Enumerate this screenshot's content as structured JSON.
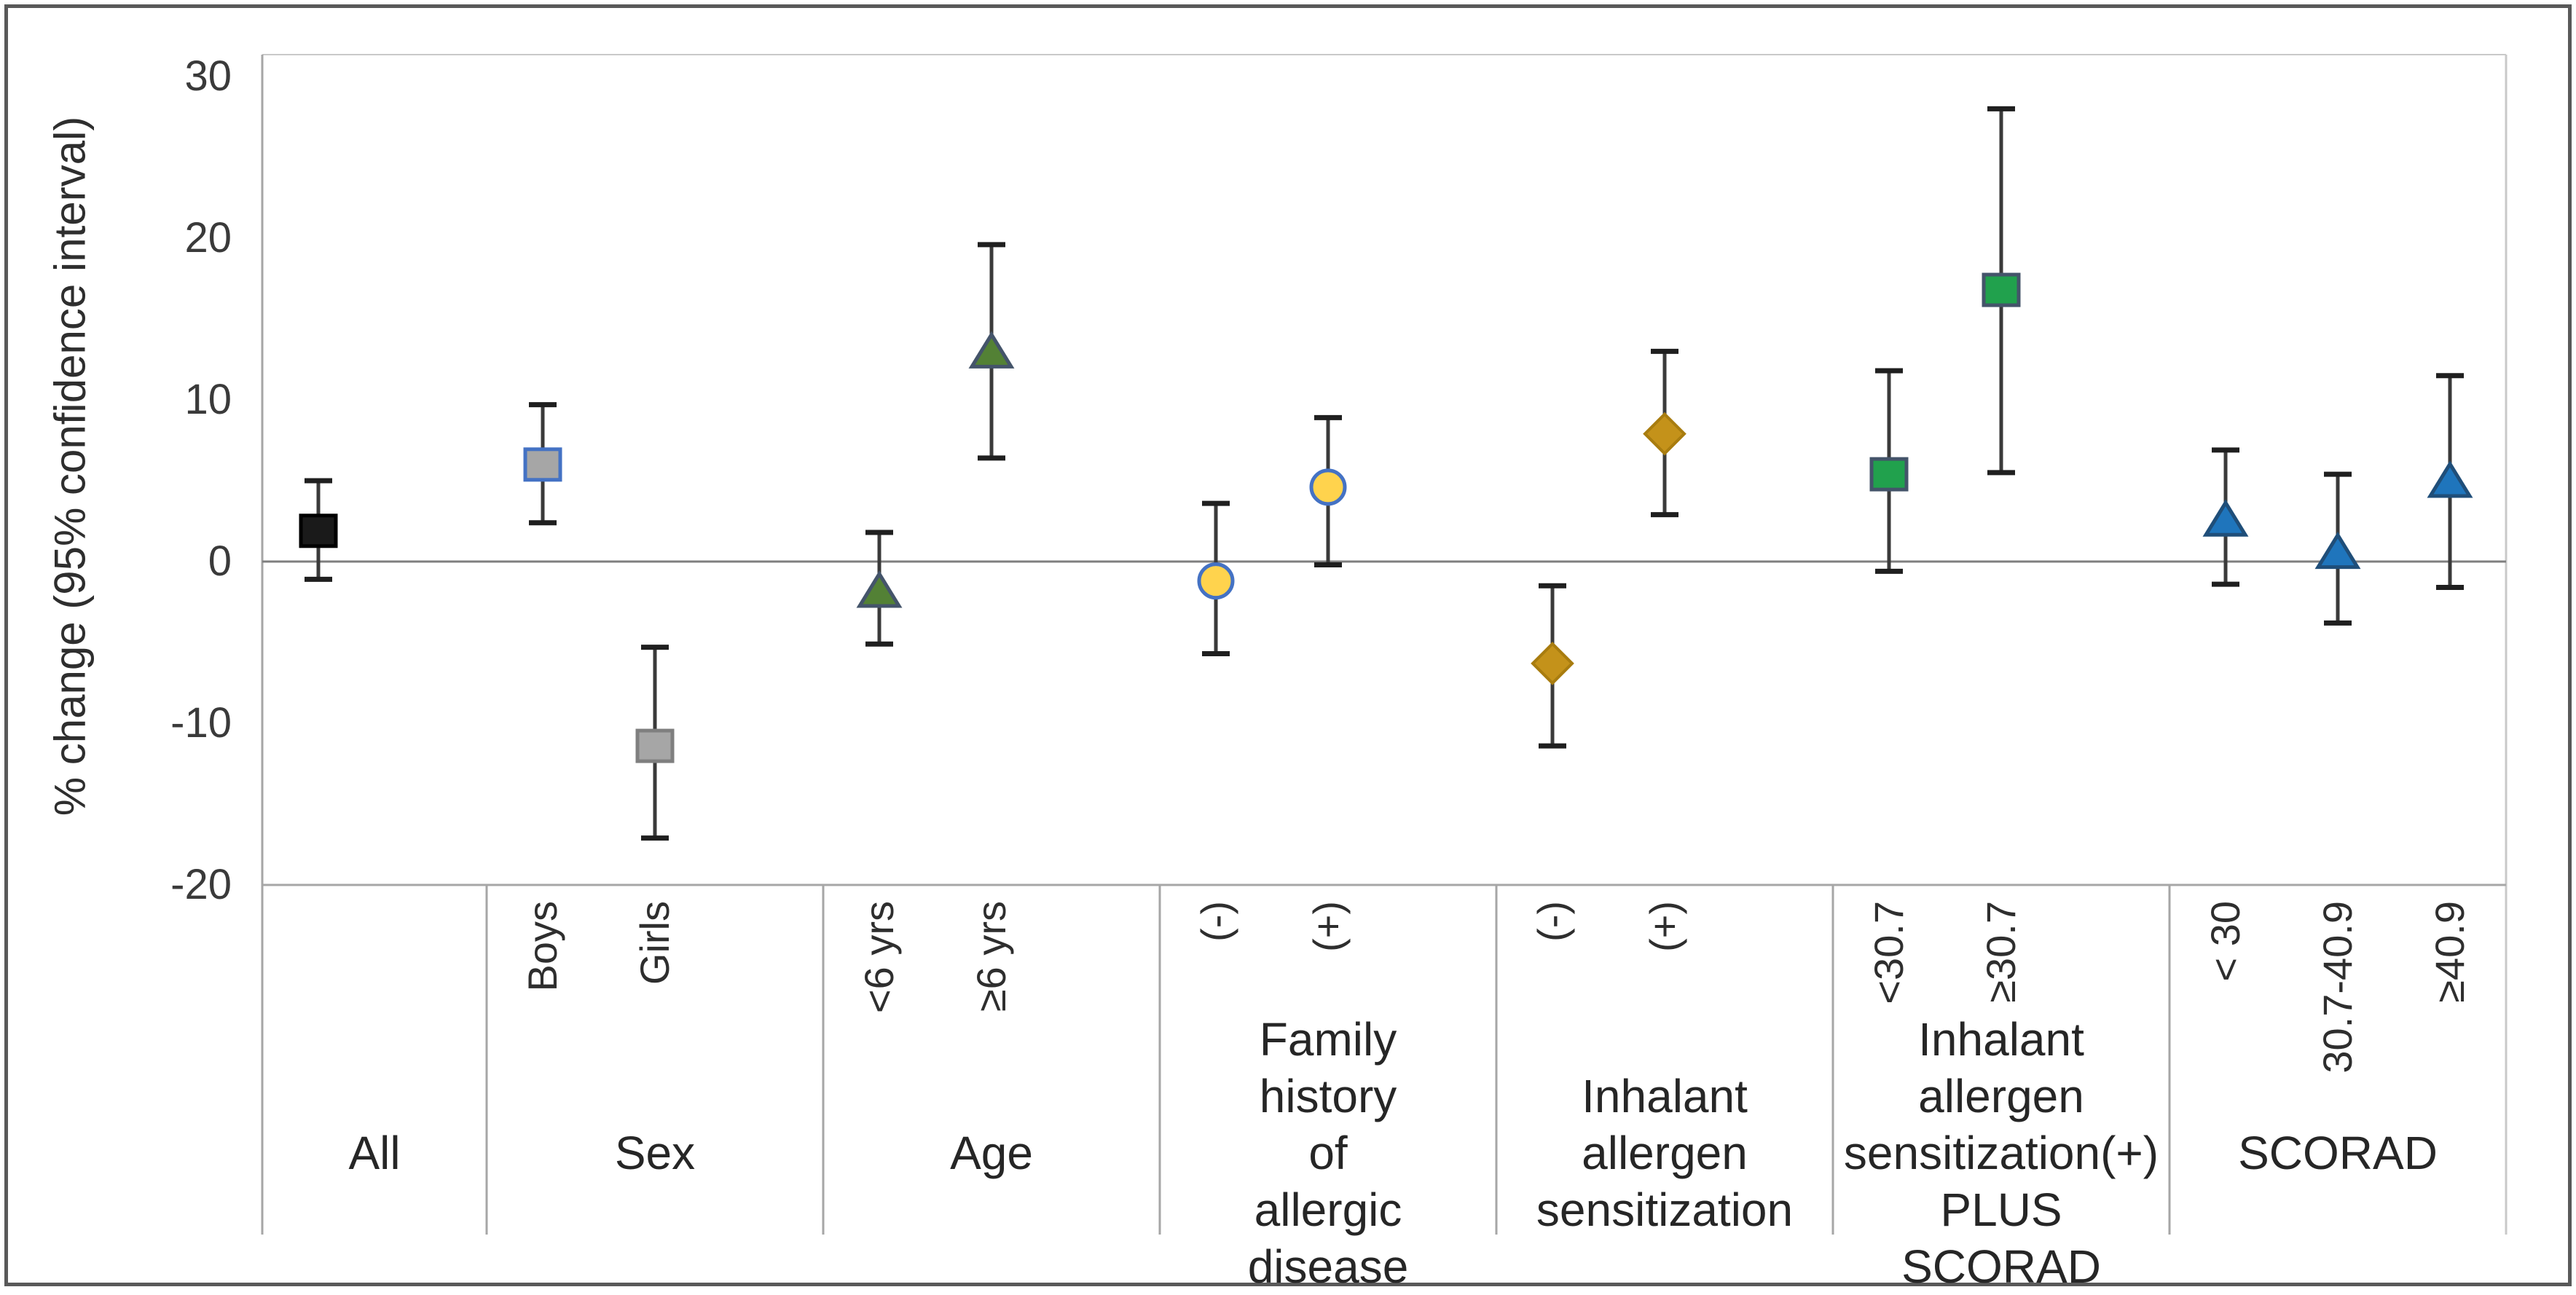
{
  "figure": {
    "background": "#FFFFFF",
    "border_color": "#595959"
  },
  "y_axis": {
    "title": "% change (95% confidence interval)",
    "tick_labels": [
      "30",
      "20",
      "10",
      "0",
      "-10",
      "-20"
    ],
    "tick_values": [
      30,
      20,
      10,
      0,
      -10,
      -20
    ]
  },
  "colors": {
    "zero_line": "#7F7F7F",
    "axis_line": "#A6A6A6",
    "frame_line": "#C9C9C9",
    "separator_line": "#A6A6A6",
    "whisker": "#3A3A3A",
    "whisker_cap": "#1F1F1F"
  },
  "chart_data": {
    "type": "scatter",
    "title": "",
    "ylabel": "% change (95% confidence interval)",
    "xlabel": "",
    "ylim": [
      -20,
      30
    ],
    "grid": "zero-line-only",
    "legend": "none",
    "error_bars": "95% CI",
    "groups": [
      {
        "label": "All",
        "label_lines": "All",
        "marker": "square",
        "fill": "#1A1A1A",
        "stroke": "#000000",
        "points": [
          {
            "sublabel": "",
            "value": 1.9,
            "ci_low": -1.1,
            "ci_high": 5.0
          }
        ]
      },
      {
        "label": "Sex",
        "label_lines": "Sex",
        "marker": "square",
        "fill": "#A6A6A6",
        "stroke": "#4472C4",
        "points": [
          {
            "sublabel": "Boys",
            "value": 6.0,
            "ci_low": 2.4,
            "ci_high": 9.7
          },
          {
            "sublabel": "Girls",
            "value": -11.4,
            "ci_low": -17.1,
            "ci_high": -5.3,
            "stroke": "#7F7F7F"
          }
        ]
      },
      {
        "label": "Age",
        "label_lines": "Age",
        "marker": "triangle",
        "fill": "#538135",
        "stroke": "#44546A",
        "points": [
          {
            "sublabel": "<6 yrs",
            "value": -1.8,
            "ci_low": -5.1,
            "ci_high": 1.8
          },
          {
            "sublabel": "≥6 yrs",
            "value": 13.0,
            "ci_low": 6.4,
            "ci_high": 19.6
          }
        ]
      },
      {
        "label": "Family history of allergic disease",
        "label_lines": "Family history of\nallergic disease",
        "marker": "circle",
        "fill": "#FFD34D",
        "stroke": "#4472C4",
        "points": [
          {
            "sublabel": "(-)",
            "value": -1.2,
            "ci_low": -5.7,
            "ci_high": 3.6
          },
          {
            "sublabel": "(+)",
            "value": 4.6,
            "ci_low": -0.2,
            "ci_high": 8.9
          }
        ]
      },
      {
        "label": "Inhalant allergen sensitization",
        "label_lines": "Inhalant allergen\nsensitization",
        "marker": "diamond",
        "fill": "#C4921A",
        "stroke": "#A87C0F",
        "points": [
          {
            "sublabel": "(-)",
            "value": -6.3,
            "ci_low": -11.4,
            "ci_high": -1.5
          },
          {
            "sublabel": "(+)",
            "value": 7.9,
            "ci_low": 2.9,
            "ci_high": 13.0
          }
        ]
      },
      {
        "label": "Inhalant allergen sensitization(+) PLUS SCORAD",
        "label_lines": "Inhalant allergen\nsensitization(+)\nPLUS SCORAD",
        "marker": "square",
        "fill": "#21A14D",
        "stroke": "#44546A",
        "points": [
          {
            "sublabel": "<30.7",
            "value": 5.4,
            "ci_low": -0.6,
            "ci_high": 11.8
          },
          {
            "sublabel": "≥30.7",
            "value": 16.8,
            "ci_low": 5.5,
            "ci_high": 28.0
          }
        ]
      },
      {
        "label": "SCORAD",
        "label_lines": "SCORAD",
        "marker": "triangle",
        "fill": "#1F75BC",
        "stroke": "#1F4E79",
        "points": [
          {
            "sublabel": "< 30",
            "value": 2.6,
            "ci_low": -1.4,
            "ci_high": 6.9
          },
          {
            "sublabel": "30.7-40.9",
            "value": 0.6,
            "ci_low": -3.8,
            "ci_high": 5.4
          },
          {
            "sublabel": "≥40.9",
            "value": 5.0,
            "ci_low": -1.6,
            "ci_high": 11.5
          }
        ]
      }
    ]
  }
}
